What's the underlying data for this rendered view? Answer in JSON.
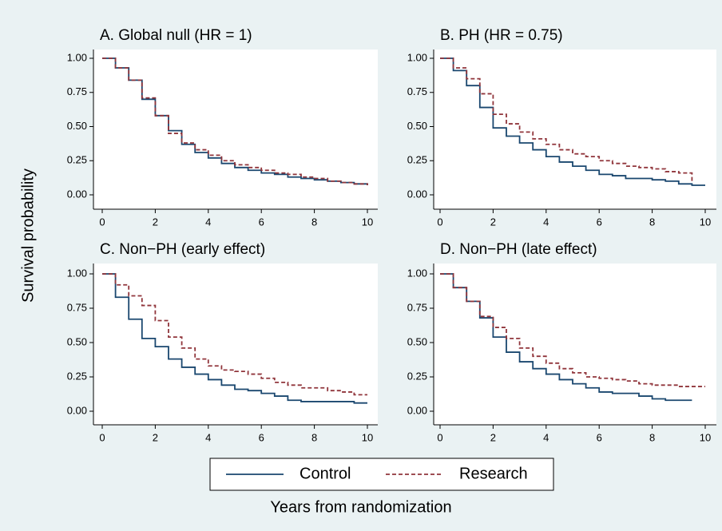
{
  "chart_data": [
    {
      "type": "line",
      "title": "A. Global null (HR = 1)",
      "x": [
        0,
        0.5,
        1,
        1.5,
        2,
        2.5,
        3,
        3.5,
        4,
        4.5,
        5,
        5.5,
        6,
        6.5,
        7,
        7.5,
        8,
        8.5,
        9,
        9.5,
        10
      ],
      "series": [
        {
          "name": "Control",
          "color": "#1a476f",
          "values": [
            1,
            0.93,
            0.84,
            0.7,
            0.58,
            0.47,
            0.37,
            0.31,
            0.27,
            0.23,
            0.2,
            0.18,
            0.16,
            0.15,
            0.13,
            0.12,
            0.11,
            0.1,
            0.09,
            0.08,
            0.07
          ]
        },
        {
          "name": "Research",
          "color": "#90353b",
          "dashed": true,
          "values": [
            1,
            0.93,
            0.84,
            0.71,
            0.58,
            0.45,
            0.38,
            0.33,
            0.29,
            0.25,
            0.22,
            0.2,
            0.18,
            0.16,
            0.15,
            0.13,
            0.12,
            0.1,
            0.09,
            0.08,
            0.07
          ]
        }
      ],
      "xlim": [
        0,
        10
      ],
      "xticks": [
        0,
        2,
        4,
        6,
        8,
        10
      ],
      "ylim": [
        0,
        1
      ],
      "yticks": [
        {
          "value": 0,
          "label": "0.00"
        },
        {
          "value": 0.25,
          "label": "0.25"
        },
        {
          "value": 0.5,
          "label": "0.50"
        },
        {
          "value": 0.75,
          "label": "0.75"
        },
        {
          "value": 1,
          "label": "1.00"
        }
      ]
    },
    {
      "type": "line",
      "title": "B. PH (HR = 0.75)",
      "x": [
        0,
        0.5,
        1,
        1.5,
        2,
        2.5,
        3,
        3.5,
        4,
        4.5,
        5,
        5.5,
        6,
        6.5,
        7,
        7.5,
        8,
        8.5,
        9,
        9.5,
        10
      ],
      "series": [
        {
          "color": "#1a476f",
          "values": [
            1,
            0.91,
            0.8,
            0.64,
            0.49,
            0.43,
            0.38,
            0.33,
            0.28,
            0.24,
            0.21,
            0.18,
            0.15,
            0.14,
            0.12,
            0.12,
            0.11,
            0.1,
            0.08,
            0.07,
            0.07
          ]
        },
        {
          "color": "#90353b",
          "dashed": true,
          "values": [
            1,
            0.93,
            0.85,
            0.74,
            0.59,
            0.52,
            0.46,
            0.41,
            0.37,
            0.33,
            0.3,
            0.28,
            0.25,
            0.23,
            0.21,
            0.2,
            0.19,
            0.17,
            0.16,
            0.1,
            null
          ]
        }
      ],
      "xlim": [
        0,
        10
      ],
      "xticks": [
        0,
        2,
        4,
        6,
        8,
        10
      ],
      "ylim": [
        0,
        1
      ],
      "yticks": [
        {
          "value": 0,
          "label": "0.00"
        },
        {
          "value": 0.25,
          "label": "0.25"
        },
        {
          "value": 0.5,
          "label": "0.50"
        },
        {
          "value": 0.75,
          "label": "0.75"
        },
        {
          "value": 1,
          "label": "1.00"
        }
      ]
    },
    {
      "type": "line",
      "title": "C. Non−PH (early effect)",
      "x": [
        0,
        0.5,
        1,
        1.5,
        2,
        2.5,
        3,
        3.5,
        4,
        4.5,
        5,
        5.5,
        6,
        6.5,
        7,
        7.5,
        8,
        8.5,
        9,
        9.5,
        10
      ],
      "series": [
        {
          "color": "#1a476f",
          "values": [
            1,
            0.83,
            0.67,
            0.53,
            0.47,
            0.38,
            0.32,
            0.27,
            0.23,
            0.19,
            0.16,
            0.15,
            0.13,
            0.11,
            0.08,
            0.07,
            0.07,
            0.07,
            0.07,
            0.06,
            0.06
          ]
        },
        {
          "color": "#90353b",
          "dashed": true,
          "values": [
            1,
            0.92,
            0.84,
            0.77,
            0.66,
            0.54,
            0.46,
            0.38,
            0.33,
            0.3,
            0.29,
            0.27,
            0.24,
            0.21,
            0.19,
            0.17,
            0.17,
            0.15,
            0.14,
            0.12,
            0.12
          ]
        }
      ],
      "xlim": [
        0,
        10
      ],
      "xticks": [
        0,
        2,
        4,
        6,
        8,
        10
      ],
      "ylim": [
        0,
        1
      ],
      "yticks": [
        {
          "value": 0,
          "label": "0.00"
        },
        {
          "value": 0.25,
          "label": "0.25"
        },
        {
          "value": 0.5,
          "label": "0.50"
        },
        {
          "value": 0.75,
          "label": "0.75"
        },
        {
          "value": 1,
          "label": "1.00"
        }
      ]
    },
    {
      "type": "line",
      "title": "D. Non−PH (late effect)",
      "x": [
        0,
        0.5,
        1,
        1.5,
        2,
        2.5,
        3,
        3.5,
        4,
        4.5,
        5,
        5.5,
        6,
        6.5,
        7,
        7.5,
        8,
        8.5,
        9,
        9.5,
        10
      ],
      "series": [
        {
          "color": "#1a476f",
          "values": [
            1,
            0.9,
            0.8,
            0.68,
            0.54,
            0.43,
            0.36,
            0.31,
            0.27,
            0.23,
            0.2,
            0.17,
            0.14,
            0.13,
            0.13,
            0.11,
            0.09,
            0.08,
            0.08,
            0.08,
            null
          ]
        },
        {
          "color": "#90353b",
          "dashed": true,
          "values": [
            1,
            0.9,
            0.8,
            0.69,
            0.61,
            0.53,
            0.46,
            0.4,
            0.35,
            0.31,
            0.28,
            0.25,
            0.24,
            0.23,
            0.22,
            0.2,
            0.19,
            0.19,
            0.18,
            0.18,
            0.18
          ]
        }
      ],
      "xlim": [
        0,
        10
      ],
      "xticks": [
        0,
        2,
        4,
        6,
        8,
        10
      ],
      "ylim": [
        0,
        1
      ],
      "yticks": [
        {
          "value": 0,
          "label": "0.00"
        },
        {
          "value": 0.25,
          "label": "0.25"
        },
        {
          "value": 0.5,
          "label": "0.50"
        },
        {
          "value": 0.75,
          "label": "0.75"
        },
        {
          "value": 1,
          "label": "1.00"
        }
      ]
    }
  ],
  "xlabel": "Years from randomization",
  "ylabel": "Survival probability"
}
